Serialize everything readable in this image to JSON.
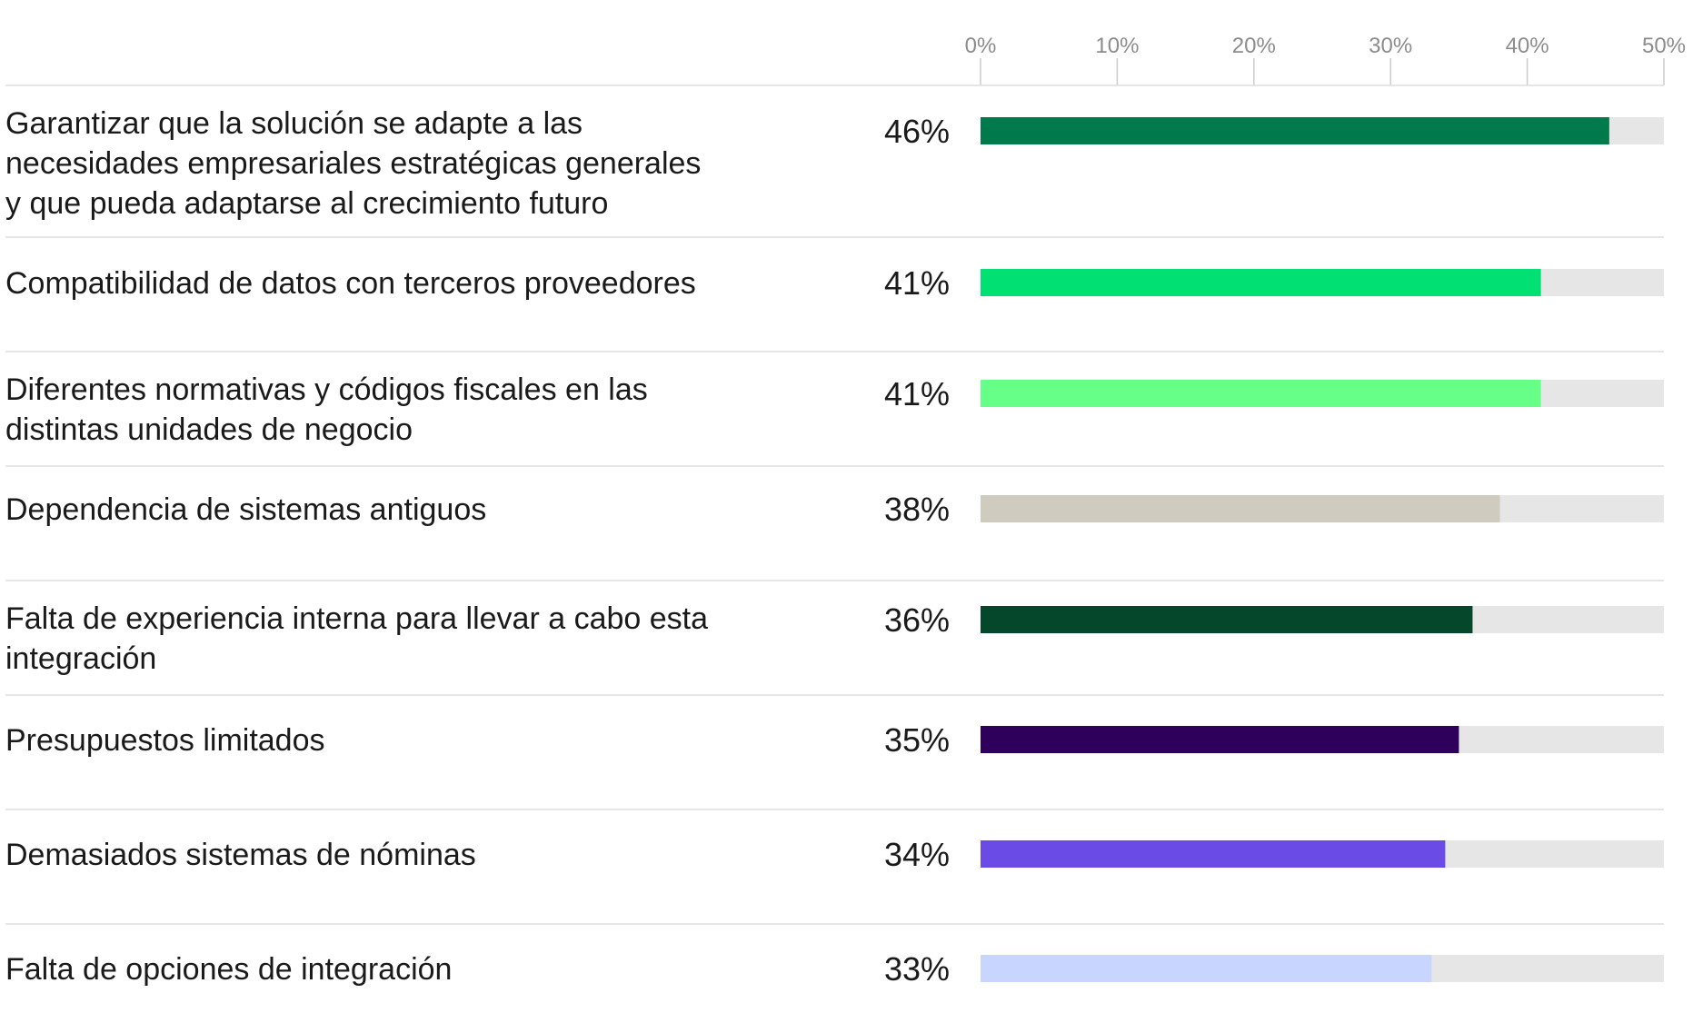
{
  "chart_data": {
    "type": "bar",
    "orientation": "horizontal",
    "xlim": [
      0,
      50
    ],
    "x_ticks": [
      "0%",
      "10%",
      "20%",
      "30%",
      "40%",
      "50%"
    ],
    "track_color": "#e6e6e6",
    "grid": false,
    "categories": [
      {
        "lines": [
          "Garantizar que la solución se adapte a las",
          "necesidades empresariales estratégicas generales",
          "y que pueda adaptarse al crecimiento futuro"
        ],
        "value": 46,
        "label": "46%",
        "color": "#007a4a"
      },
      {
        "lines": [
          "Compatibilidad de datos con terceros proveedores"
        ],
        "value": 41,
        "label": "41%",
        "color": "#00e073"
      },
      {
        "lines": [
          "Diferentes normativas y códigos fiscales en las",
          "distintas unidades de negocio"
        ],
        "value": 41,
        "label": "41%",
        "color": "#66ff87"
      },
      {
        "lines": [
          "Dependencia de sistemas antiguos"
        ],
        "value": 38,
        "label": "38%",
        "color": "#cfcbbf"
      },
      {
        "lines": [
          "Falta de experiencia interna para llevar a cabo esta",
          "integración"
        ],
        "value": 36,
        "label": "36%",
        "color": "#05472b"
      },
      {
        "lines": [
          "Presupuestos limitados"
        ],
        "value": 35,
        "label": "35%",
        "color": "#2e005c"
      },
      {
        "lines": [
          "Demasiados sistemas de nóminas"
        ],
        "value": 34,
        "label": "34%",
        "color": "#6a4be6"
      },
      {
        "lines": [
          "Falta de opciones de integración"
        ],
        "value": 33,
        "label": "33%",
        "color": "#c8d6ff"
      }
    ]
  }
}
